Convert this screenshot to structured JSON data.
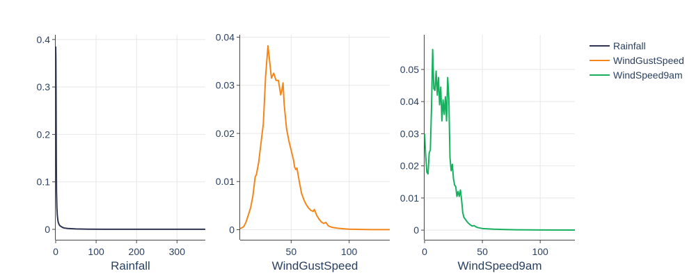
{
  "chart_data": [
    {
      "type": "line",
      "title": "",
      "xlabel": "Rainfall",
      "ylabel": "",
      "xlim": [
        0,
        370
      ],
      "ylim": [
        -0.022,
        0.41
      ],
      "grid": true,
      "x_ticks": [
        0,
        100,
        200,
        300
      ],
      "y_ticks": [
        0,
        0.1,
        0.2,
        0.3,
        0.4
      ],
      "y_tick_labels": [
        "0",
        "0.1",
        "0.2",
        "0.3",
        "0.4"
      ],
      "series": [
        {
          "name": "Rainfall",
          "color": "#2d3350",
          "x": [
            0,
            0.5,
            1,
            1.5,
            2,
            3,
            4,
            5,
            6,
            8,
            10,
            15,
            20,
            30,
            50,
            80,
            120,
            200,
            300,
            370
          ],
          "y": [
            0.385,
            0.36,
            0.27,
            0.15,
            0.08,
            0.045,
            0.03,
            0.022,
            0.016,
            0.011,
            0.008,
            0.005,
            0.003,
            0.0018,
            0.0009,
            0.0004,
            0.0002,
            0.0001,
            0.0001,
            0.0001
          ]
        }
      ]
    },
    {
      "type": "line",
      "title": "",
      "xlabel": "WindGustSpeed",
      "ylabel": "",
      "xlim": [
        6,
        135
      ],
      "ylim": [
        -0.0021,
        0.0405
      ],
      "grid": true,
      "x_ticks": [
        50,
        100
      ],
      "y_ticks": [
        0,
        0.01,
        0.02,
        0.03,
        0.04
      ],
      "y_tick_labels": [
        "0",
        "0.01",
        "0.02",
        "0.03",
        "0.04"
      ],
      "series": [
        {
          "name": "WindGustSpeed",
          "color": "#f58518",
          "x": [
            6,
            9,
            11,
            13,
            15,
            17,
            19,
            20,
            22,
            24,
            26,
            28,
            30,
            31,
            33,
            35,
            37,
            39,
            41,
            42,
            43,
            44,
            46,
            48,
            50,
            52,
            53,
            54,
            55,
            57,
            59,
            61,
            63,
            65,
            67,
            69,
            70,
            72,
            74,
            76,
            78,
            80,
            82,
            85,
            90,
            95,
            100,
            110,
            120,
            135
          ],
          "y": [
            0.0002,
            0.0006,
            0.0015,
            0.003,
            0.0045,
            0.007,
            0.011,
            0.0114,
            0.014,
            0.018,
            0.022,
            0.032,
            0.0382,
            0.036,
            0.0315,
            0.0325,
            0.031,
            0.031,
            0.028,
            0.029,
            0.0305,
            0.026,
            0.021,
            0.0185,
            0.0165,
            0.0145,
            0.013,
            0.0125,
            0.0128,
            0.01,
            0.0075,
            0.0062,
            0.0052,
            0.0045,
            0.004,
            0.0038,
            0.0042,
            0.003,
            0.0022,
            0.0016,
            0.0013,
            0.0015,
            0.0008,
            0.0005,
            0.0003,
            0.0002,
            0.0001,
            5e-05,
            2e-05,
            1e-05
          ]
        }
      ]
    },
    {
      "type": "line",
      "title": "",
      "xlabel": "WindSpeed9am",
      "ylabel": "",
      "xlim": [
        0,
        130
      ],
      "ylim": [
        -0.003,
        0.0608
      ],
      "grid": true,
      "x_ticks": [
        0,
        50,
        100
      ],
      "y_ticks": [
        0,
        0.01,
        0.02,
        0.03,
        0.04,
        0.05
      ],
      "y_tick_labels": [
        "0",
        "0.01",
        "0.02",
        "0.03",
        "0.04",
        "0.05"
      ],
      "series": [
        {
          "name": "WindSpeed9am",
          "color": "#17b05f",
          "x": [
            0,
            1,
            2,
            3,
            4,
            5,
            6,
            7,
            8,
            9,
            10,
            11,
            12,
            13,
            14,
            15,
            16,
            17,
            18,
            19,
            20,
            21,
            22,
            23,
            24,
            25,
            26,
            27,
            28,
            29,
            30,
            31,
            32,
            33,
            34,
            35,
            37,
            39,
            41,
            43,
            44,
            46,
            50,
            60,
            70,
            80,
            100,
            130
          ],
          "y": [
            0.03,
            0.023,
            0.018,
            0.0175,
            0.024,
            0.025,
            0.038,
            0.0562,
            0.044,
            0.0435,
            0.0495,
            0.042,
            0.0475,
            0.039,
            0.0445,
            0.034,
            0.0405,
            0.036,
            0.0415,
            0.034,
            0.0475,
            0.041,
            0.0225,
            0.0185,
            0.0205,
            0.016,
            0.014,
            0.0135,
            0.0105,
            0.012,
            0.0105,
            0.0125,
            0.0095,
            0.0055,
            0.004,
            0.0035,
            0.0025,
            0.0018,
            0.0013,
            0.0014,
            0.0011,
            0.0008,
            0.0005,
            0.0003,
            0.0002,
            0.0001,
            5e-05,
            2e-05
          ]
        }
      ]
    }
  ],
  "legend": {
    "position": "top-right",
    "items": [
      {
        "label": "Rainfall",
        "color": "#2d3350"
      },
      {
        "label": "WindGustSpeed",
        "color": "#f58518"
      },
      {
        "label": "WindSpeed9am",
        "color": "#17b05f"
      }
    ]
  },
  "colors": {
    "grid": "#e8e8e8",
    "axis": "#444444",
    "text": "#2a3f5f"
  }
}
